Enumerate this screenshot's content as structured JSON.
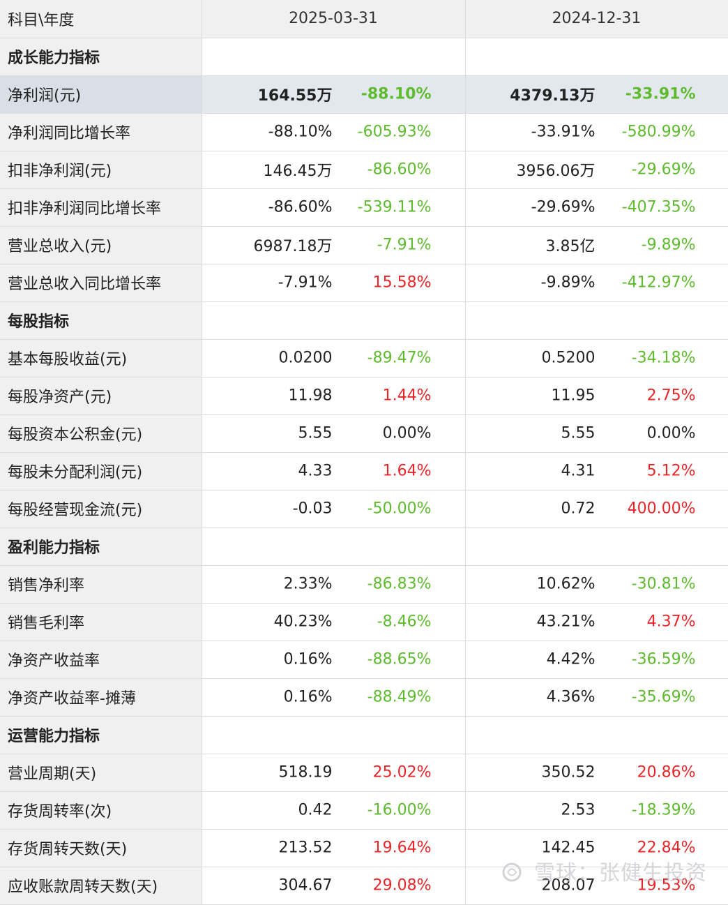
{
  "header": {
    "label": "科目\\年度",
    "periods": [
      "2025-03-31",
      "2024-12-31"
    ]
  },
  "rows": [
    {
      "type": "section",
      "label": "成长能力指标"
    },
    {
      "type": "data",
      "label": "净利润(元)",
      "highlight": true,
      "bold": true,
      "cells": [
        {
          "value": "164.55万",
          "change": "-88.10%",
          "trend": "neg"
        },
        {
          "value": "4379.13万",
          "change": "-33.91%",
          "trend": "neg"
        }
      ]
    },
    {
      "type": "data",
      "label": "净利润同比增长率",
      "cells": [
        {
          "value": "-88.10%",
          "change": "-605.93%",
          "trend": "neg"
        },
        {
          "value": "-33.91%",
          "change": "-580.99%",
          "trend": "neg"
        }
      ]
    },
    {
      "type": "data",
      "label": "扣非净利润(元)",
      "cells": [
        {
          "value": "146.45万",
          "change": "-86.60%",
          "trend": "neg"
        },
        {
          "value": "3956.06万",
          "change": "-29.69%",
          "trend": "neg"
        }
      ]
    },
    {
      "type": "data",
      "label": "扣非净利润同比增长率",
      "cells": [
        {
          "value": "-86.60%",
          "change": "-539.11%",
          "trend": "neg"
        },
        {
          "value": "-29.69%",
          "change": "-407.35%",
          "trend": "neg"
        }
      ]
    },
    {
      "type": "data",
      "label": "营业总收入(元)",
      "cells": [
        {
          "value": "6987.18万",
          "change": "-7.91%",
          "trend": "neg"
        },
        {
          "value": "3.85亿",
          "change": "-9.89%",
          "trend": "neg"
        }
      ]
    },
    {
      "type": "data",
      "label": "营业总收入同比增长率",
      "cells": [
        {
          "value": "-7.91%",
          "change": "15.58%",
          "trend": "pos"
        },
        {
          "value": "-9.89%",
          "change": "-412.97%",
          "trend": "neg"
        }
      ]
    },
    {
      "type": "section",
      "label": "每股指标"
    },
    {
      "type": "data",
      "label": "基本每股收益(元)",
      "cells": [
        {
          "value": "0.0200",
          "change": "-89.47%",
          "trend": "neg"
        },
        {
          "value": "0.5200",
          "change": "-34.18%",
          "trend": "neg"
        }
      ]
    },
    {
      "type": "data",
      "label": "每股净资产(元)",
      "cells": [
        {
          "value": "11.98",
          "change": "1.44%",
          "trend": "pos"
        },
        {
          "value": "11.95",
          "change": "2.75%",
          "trend": "pos"
        }
      ]
    },
    {
      "type": "data",
      "label": "每股资本公积金(元)",
      "cells": [
        {
          "value": "5.55",
          "change": "0.00%",
          "trend": "neu"
        },
        {
          "value": "5.55",
          "change": "0.00%",
          "trend": "neu"
        }
      ]
    },
    {
      "type": "data",
      "label": "每股未分配利润(元)",
      "cells": [
        {
          "value": "4.33",
          "change": "1.64%",
          "trend": "pos"
        },
        {
          "value": "4.31",
          "change": "5.12%",
          "trend": "pos"
        }
      ]
    },
    {
      "type": "data",
      "label": "每股经营现金流(元)",
      "cells": [
        {
          "value": "-0.03",
          "change": "-50.00%",
          "trend": "neg"
        },
        {
          "value": "0.72",
          "change": "400.00%",
          "trend": "pos"
        }
      ]
    },
    {
      "type": "section",
      "label": "盈利能力指标"
    },
    {
      "type": "data",
      "label": "销售净利率",
      "cells": [
        {
          "value": "2.33%",
          "change": "-86.83%",
          "trend": "neg"
        },
        {
          "value": "10.62%",
          "change": "-30.81%",
          "trend": "neg"
        }
      ]
    },
    {
      "type": "data",
      "label": "销售毛利率",
      "cells": [
        {
          "value": "40.23%",
          "change": "-8.46%",
          "trend": "neg"
        },
        {
          "value": "43.21%",
          "change": "4.37%",
          "trend": "pos"
        }
      ]
    },
    {
      "type": "data",
      "label": "净资产收益率",
      "cells": [
        {
          "value": "0.16%",
          "change": "-88.65%",
          "trend": "neg"
        },
        {
          "value": "4.42%",
          "change": "-36.59%",
          "trend": "neg"
        }
      ]
    },
    {
      "type": "data",
      "label": "净资产收益率-摊薄",
      "cells": [
        {
          "value": "0.16%",
          "change": "-88.49%",
          "trend": "neg"
        },
        {
          "value": "4.36%",
          "change": "-35.69%",
          "trend": "neg"
        }
      ]
    },
    {
      "type": "section",
      "label": "运营能力指标"
    },
    {
      "type": "data",
      "label": "营业周期(天)",
      "cells": [
        {
          "value": "518.19",
          "change": "25.02%",
          "trend": "pos"
        },
        {
          "value": "350.52",
          "change": "20.86%",
          "trend": "pos"
        }
      ]
    },
    {
      "type": "data",
      "label": "存货周转率(次)",
      "cells": [
        {
          "value": "0.42",
          "change": "-16.00%",
          "trend": "neg"
        },
        {
          "value": "2.53",
          "change": "-18.39%",
          "trend": "neg"
        }
      ]
    },
    {
      "type": "data",
      "label": "存货周转天数(天)",
      "cells": [
        {
          "value": "213.52",
          "change": "19.64%",
          "trend": "pos"
        },
        {
          "value": "142.45",
          "change": "22.84%",
          "trend": "pos"
        }
      ]
    },
    {
      "type": "data",
      "label": "应收账款周转天数(天)",
      "cells": [
        {
          "value": "304.67",
          "change": "29.08%",
          "trend": "pos"
        },
        {
          "value": "208.07",
          "change": "19.53%",
          "trend": "pos"
        }
      ]
    }
  ],
  "colors": {
    "positive": "#e8262a",
    "negative": "#5dbb2d",
    "neutral": "#222222",
    "label_bg": "#f0f0f0",
    "highlight_bg": "#e3e8ef"
  },
  "watermark": "雪球：张健生投资"
}
